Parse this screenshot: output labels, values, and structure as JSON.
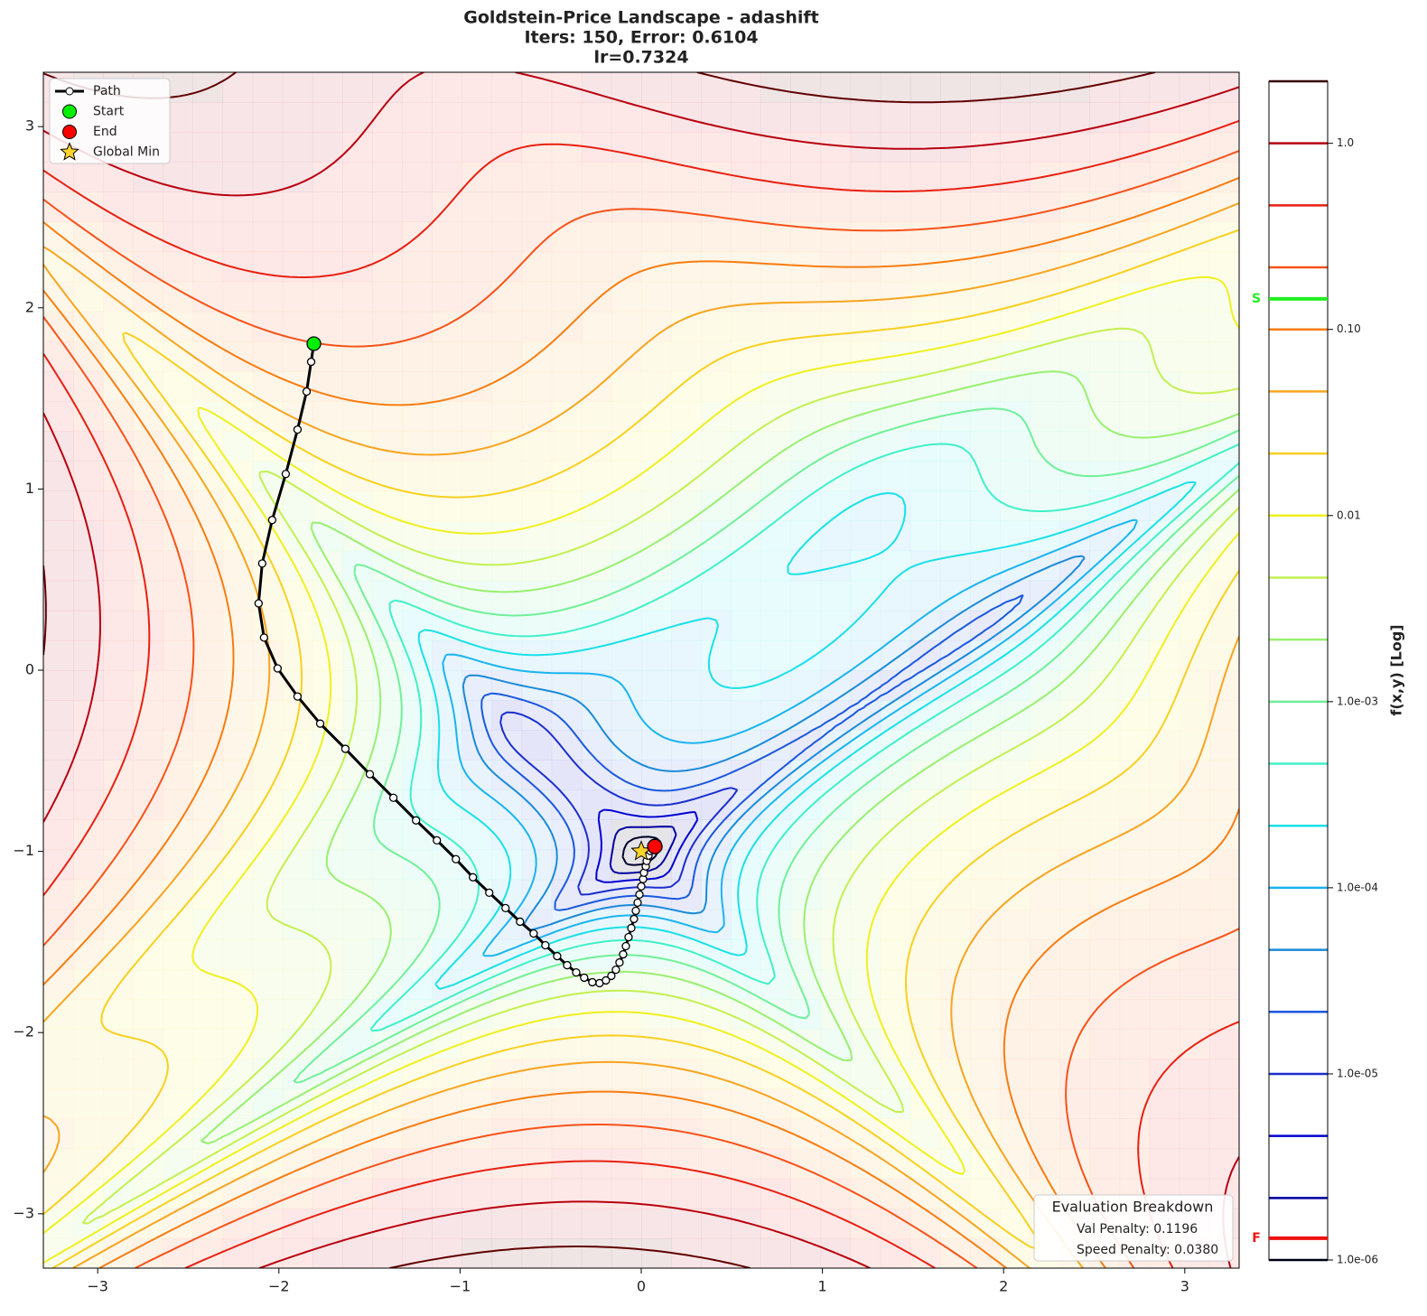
{
  "chart_data": {
    "type": "contour",
    "title": [
      "Goldstein-Price Landscape - adashift",
      "Iters: 150, Error: 0.6104",
      "lr=0.7324"
    ],
    "xlim": [
      -3.3,
      3.3
    ],
    "ylim": [
      -3.3,
      3.3
    ],
    "xticks": [
      {
        "value": -3,
        "label": "−3"
      },
      {
        "value": -2,
        "label": "−2"
      },
      {
        "value": -1,
        "label": "−1"
      },
      0,
      1,
      2,
      3
    ],
    "yticks": [
      {
        "value": -3,
        "label": "−3"
      },
      {
        "value": -2,
        "label": "−2"
      },
      {
        "value": -1,
        "label": "−1"
      },
      0,
      1,
      2,
      3
    ],
    "legend": "upper left",
    "path": {
      "name": "Path",
      "color": "#000000",
      "x": [
        -1.807,
        -1.822,
        -1.847,
        -1.897,
        -1.962,
        -2.037,
        -2.092,
        -2.112,
        -2.082,
        -2.007,
        -1.897,
        -1.772,
        -1.633,
        -1.498,
        -1.368,
        -1.243,
        -1.128,
        -1.023,
        -0.929,
        -0.839,
        -0.749,
        -0.669,
        -0.594,
        -0.529,
        -0.464,
        -0.409,
        -0.359,
        -0.315,
        -0.27,
        -0.23,
        -0.195,
        -0.165,
        -0.14,
        -0.12,
        -0.1,
        -0.085,
        -0.07,
        -0.055,
        -0.04,
        -0.03,
        -0.02,
        -0.01,
        0.0,
        0.01,
        0.015,
        0.025,
        0.03,
        0.04,
        0.05,
        0.06,
        0.075
      ],
      "y": [
        1.802,
        1.702,
        1.538,
        1.328,
        1.083,
        0.829,
        0.589,
        0.369,
        0.18,
        0.01,
        -0.145,
        -0.295,
        -0.434,
        -0.574,
        -0.704,
        -0.829,
        -0.939,
        -1.043,
        -1.143,
        -1.228,
        -1.313,
        -1.388,
        -1.453,
        -1.518,
        -1.578,
        -1.628,
        -1.668,
        -1.697,
        -1.722,
        -1.727,
        -1.712,
        -1.687,
        -1.653,
        -1.613,
        -1.568,
        -1.523,
        -1.473,
        -1.423,
        -1.373,
        -1.328,
        -1.283,
        -1.238,
        -1.193,
        -1.153,
        -1.118,
        -1.083,
        -1.053,
        -1.023,
        -0.998,
        -0.978,
        -0.973
      ]
    },
    "start": {
      "name": "Start",
      "x": -1.807,
      "y": 1.802,
      "color": "#00ee00"
    },
    "end": {
      "name": "End",
      "x": 0.075,
      "y": -0.973,
      "color": "#ff0000"
    },
    "global_min": {
      "name": "Global Min",
      "x": 0,
      "y": -1,
      "color": "#ffd42a"
    },
    "levels": [
      1e-06,
      2.154e-06,
      4.642e-06,
      1e-05,
      2.154e-05,
      4.642e-05,
      0.0001,
      0.0002154,
      0.0004642,
      0.001,
      0.002154,
      0.004642,
      0.01,
      0.02154,
      0.04642,
      0.1,
      0.2154,
      0.4642,
      1,
      2.154
    ],
    "level_colors": [
      "#00002a",
      "#0000a0",
      "#0000d0",
      "#1a2fcc",
      "#1a58dd",
      "#1a8ad8",
      "#1ab4f0",
      "#1ae0e8",
      "#40f0c8",
      "#70f098",
      "#98f070",
      "#c4f050",
      "#f0f020",
      "#f8d020",
      "#f8a420",
      "#f87c10",
      "#f85218",
      "#e82010",
      "#b80010",
      "#600000"
    ],
    "colorbar": {
      "label": "f(x,y) [Log]",
      "log": true,
      "ylim": [
        1e-06,
        2.154
      ],
      "ticks": [
        {
          "value": 1e-06,
          "label": "1.0e-06"
        },
        {
          "value": 1e-05,
          "label": "1.0e-05"
        },
        {
          "value": 0.0001,
          "label": "1.0e-04"
        },
        {
          "value": 0.001,
          "label": "1.0e-03"
        },
        {
          "value": 0.01,
          "label": "0.01"
        },
        {
          "value": 0.1,
          "label": "0.10"
        },
        {
          "value": 1,
          "label": "1.0"
        }
      ],
      "markers": [
        {
          "label": "S",
          "value": 0.146,
          "color": "#22ee22"
        },
        {
          "label": "F",
          "value": 1.31e-06,
          "color": "#ee1111"
        }
      ]
    },
    "evaluation": {
      "title": "Evaluation Breakdown",
      "lines": [
        "Val Penalty: 0.1196",
        "Speed Penalty: 0.0380"
      ]
    }
  }
}
